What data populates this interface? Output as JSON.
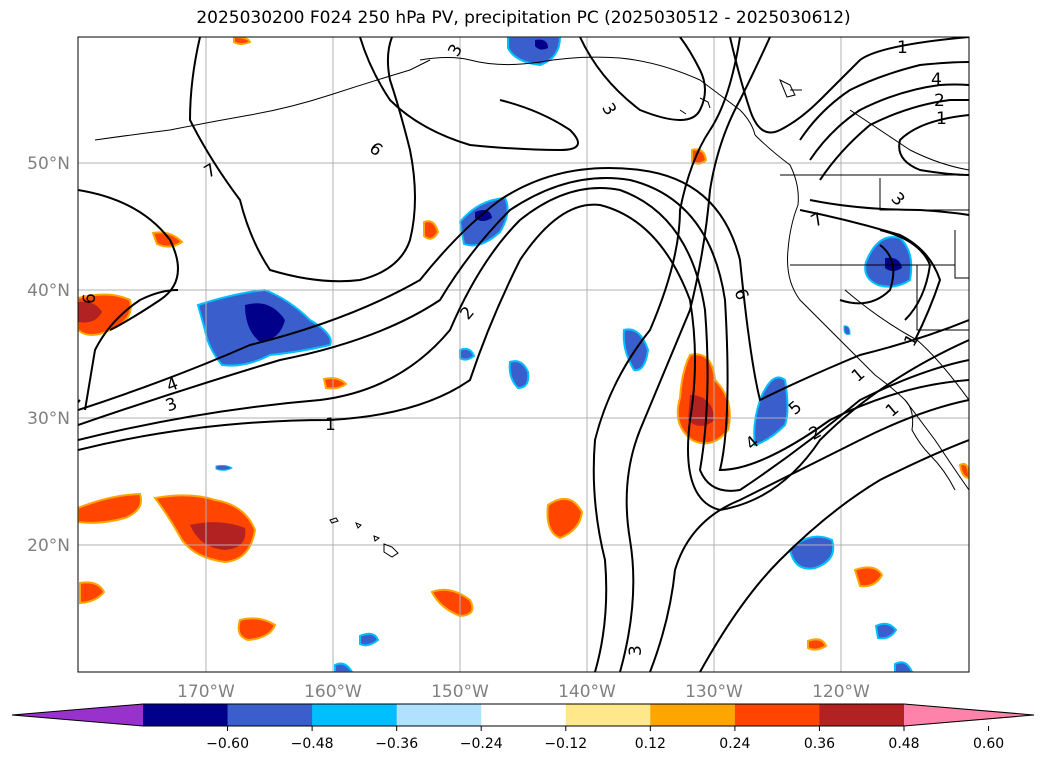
{
  "title": "2025030200 F024 250 hPa PV, precipitation PC (2025030512 - 2025030612)",
  "map": {
    "lon_labels": [
      "170°W",
      "160°W",
      "150°W",
      "140°W",
      "130°W",
      "120°W"
    ],
    "lat_labels": [
      "50°N",
      "40°N",
      "30°N",
      "20°N"
    ],
    "contour_labels": [
      "1",
      "4",
      "2",
      "1",
      "3",
      "7",
      "6",
      "3",
      "2",
      "4",
      "3",
      "1",
      "6",
      "7",
      "3",
      "6",
      "5",
      "4",
      "2",
      "1",
      "1",
      "3",
      "1"
    ]
  },
  "colorbar": {
    "ticks": [
      "−0.60",
      "−0.48",
      "−0.36",
      "−0.24",
      "−0.12",
      "0.12",
      "0.24",
      "0.36",
      "0.48",
      "0.60"
    ],
    "colors": [
      "#9932CC",
      "#00008B",
      "#3A5FCD",
      "#00BFFF",
      "#B0E2FF",
      "#FFFFFF",
      "#FFE88C",
      "#FFA500",
      "#FF4500",
      "#B22222",
      "#FF82AB"
    ]
  },
  "colors": {
    "grid": "#b0b0b0",
    "label_gray": "#808080",
    "contour": "#000000"
  }
}
